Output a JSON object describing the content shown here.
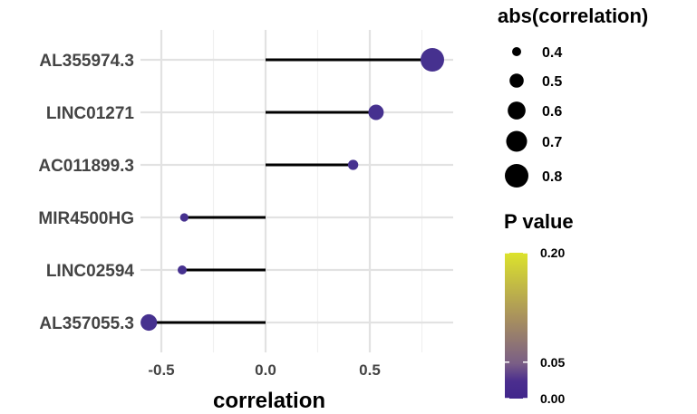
{
  "chart_data": {
    "type": "lollipop",
    "xlabel": "correlation",
    "xlim": [
      -0.6,
      0.9
    ],
    "x_ticks": [
      "-0.5",
      "0.0",
      "0.5"
    ],
    "x_tick_values": [
      -0.5,
      0.0,
      0.5
    ],
    "grid": true,
    "categories": [
      "AL355974.3",
      "LINC01271",
      "AC011899.3",
      "MIR4500HG",
      "LINC02594",
      "AL357055.3"
    ],
    "values": [
      0.8,
      0.53,
      0.42,
      -0.39,
      -0.4,
      -0.56
    ],
    "p_values": [
      0.0,
      0.0,
      0.0,
      0.0,
      0.0,
      0.0
    ],
    "size_legend": {
      "title": "abs(correlation)",
      "labels": [
        "0.4",
        "0.5",
        "0.6",
        "0.7",
        "0.8"
      ],
      "values": [
        0.4,
        0.5,
        0.6,
        0.7,
        0.8
      ]
    },
    "color_legend": {
      "title": "P value",
      "tick_labels": [
        "0.20",
        "0.05",
        "0.00"
      ],
      "tick_values": [
        0.2,
        0.05,
        0.0
      ],
      "colors": [
        "#DCE32C",
        "#A8905E",
        "#7A5E86",
        "#4B2E8E",
        "#41268C"
      ]
    },
    "line_color": "#000000",
    "point_color": "#46318F",
    "legend_position": "right"
  }
}
